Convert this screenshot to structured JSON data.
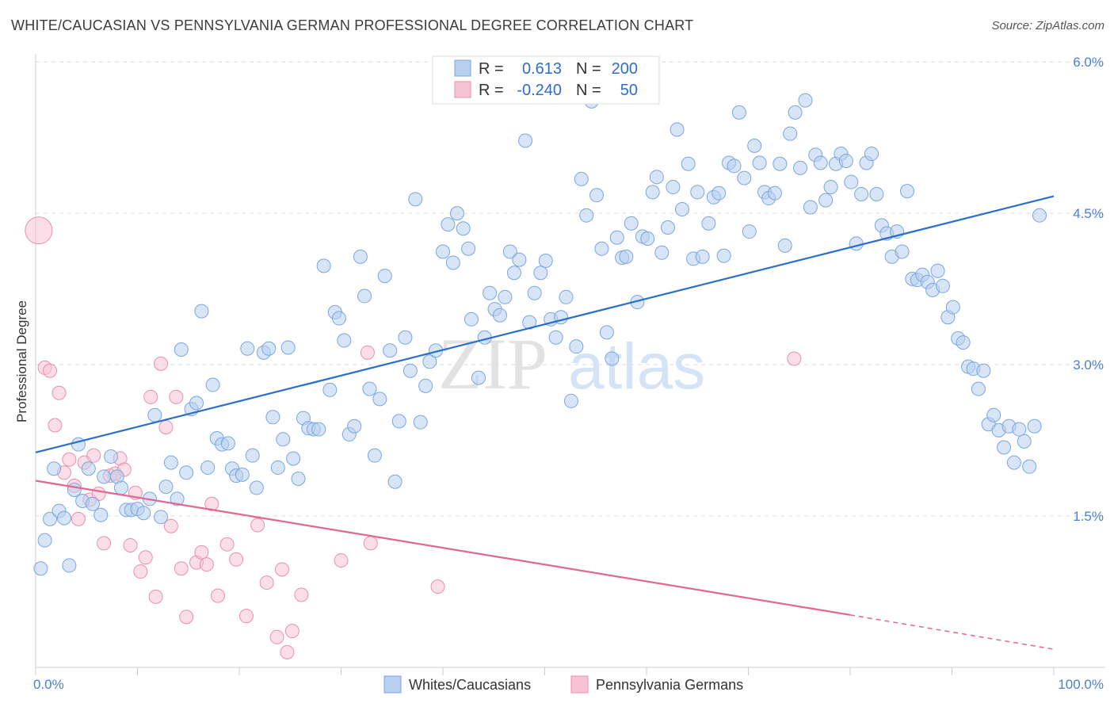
{
  "header": {
    "title": "WHITE/CAUCASIAN VS PENNSYLVANIA GERMAN PROFESSIONAL DEGREE CORRELATION CHART",
    "source": "Source: ZipAtlas.com"
  },
  "watermark": {
    "zip": "ZIP",
    "atlas": "atlas"
  },
  "colors": {
    "blue_fill": "#b8d0f0",
    "blue_stroke": "#7aa6e0",
    "blue_line": "#2a6fcc",
    "pink_fill": "#f7c3d4",
    "pink_stroke": "#ea8fae",
    "pink_line": "#e0688f",
    "tick_text": "#4a7fd4",
    "grid": "#dddddd"
  },
  "stats_legend": {
    "rows": [
      {
        "r_label": "R =",
        "r_value": "0.613",
        "n_label": "N =",
        "n_value": "200",
        "series": "blue"
      },
      {
        "r_label": "R =",
        "r_value": "-0.240",
        "n_label": "N =",
        "n_value": "50",
        "series": "pink"
      }
    ]
  },
  "chart_data": {
    "type": "scatter",
    "title": "WHITE/CAUCASIAN VS PENNSYLVANIA GERMAN PROFESSIONAL DEGREE CORRELATION CHART",
    "xlabel": "",
    "ylabel": "Professional Degree",
    "x_tick_labels": [
      "0.0%",
      "100.0%"
    ],
    "y_tick_labels": [
      "1.5%",
      "3.0%",
      "4.5%",
      "6.0%"
    ],
    "y_ticks": [
      1.5,
      3.0,
      4.5,
      6.0
    ],
    "xlim": [
      0,
      100
    ],
    "ylim": [
      0,
      6.2
    ],
    "grid": true,
    "legend_position": "bottom",
    "series": [
      {
        "name": "Whites/Caucasians",
        "color": "#b8d0f0",
        "trend": {
          "x": [
            0,
            100
          ],
          "y": [
            2.13,
            4.67
          ]
        },
        "points": [
          [
            0.5,
            0.98
          ],
          [
            0.9,
            1.26
          ],
          [
            1.4,
            1.47
          ],
          [
            1.8,
            1.97
          ],
          [
            2.3,
            1.55
          ],
          [
            2.8,
            1.48
          ],
          [
            3.3,
            1.01
          ],
          [
            3.8,
            1.76
          ],
          [
            4.2,
            2.21
          ],
          [
            4.6,
            1.65
          ],
          [
            5.2,
            1.97
          ],
          [
            5.6,
            1.62
          ],
          [
            6.4,
            1.51
          ],
          [
            6.7,
            1.89
          ],
          [
            7.4,
            2.09
          ],
          [
            8.0,
            1.89
          ],
          [
            8.4,
            1.78
          ],
          [
            8.9,
            1.56
          ],
          [
            9.4,
            1.56
          ],
          [
            10.0,
            1.57
          ],
          [
            10.6,
            1.53
          ],
          [
            11.2,
            1.67
          ],
          [
            11.7,
            2.5
          ],
          [
            12.3,
            1.49
          ],
          [
            12.8,
            1.79
          ],
          [
            13.3,
            2.03
          ],
          [
            13.9,
            1.67
          ],
          [
            14.3,
            3.15
          ],
          [
            14.8,
            1.93
          ],
          [
            15.3,
            2.56
          ],
          [
            15.8,
            2.62
          ],
          [
            16.3,
            3.53
          ],
          [
            16.9,
            1.98
          ],
          [
            17.4,
            2.8
          ],
          [
            17.8,
            2.27
          ],
          [
            18.3,
            2.21
          ],
          [
            18.9,
            2.22
          ],
          [
            19.3,
            1.97
          ],
          [
            19.7,
            1.9
          ],
          [
            20.3,
            1.91
          ],
          [
            20.8,
            3.16
          ],
          [
            21.3,
            2.1
          ],
          [
            21.7,
            1.78
          ],
          [
            22.4,
            3.12
          ],
          [
            22.9,
            3.16
          ],
          [
            23.3,
            2.48
          ],
          [
            23.8,
            1.98
          ],
          [
            24.3,
            2.26
          ],
          [
            24.8,
            3.17
          ],
          [
            25.3,
            2.07
          ],
          [
            25.8,
            1.87
          ],
          [
            26.3,
            2.47
          ],
          [
            26.8,
            2.37
          ],
          [
            27.3,
            2.36
          ],
          [
            27.8,
            2.36
          ],
          [
            28.3,
            3.98
          ],
          [
            28.9,
            2.75
          ],
          [
            29.4,
            3.52
          ],
          [
            29.8,
            3.46
          ],
          [
            30.3,
            3.24
          ],
          [
            30.8,
            2.31
          ],
          [
            31.3,
            2.39
          ],
          [
            31.9,
            4.07
          ],
          [
            32.3,
            3.68
          ],
          [
            32.8,
            2.76
          ],
          [
            33.3,
            2.1
          ],
          [
            33.8,
            2.66
          ],
          [
            34.3,
            3.88
          ],
          [
            34.8,
            3.14
          ],
          [
            35.3,
            1.84
          ],
          [
            35.7,
            2.44
          ],
          [
            36.3,
            3.27
          ],
          [
            36.8,
            2.94
          ],
          [
            37.3,
            4.64
          ],
          [
            37.8,
            2.43
          ],
          [
            38.3,
            2.79
          ],
          [
            38.7,
            3.03
          ],
          [
            39.3,
            3.14
          ],
          [
            40.0,
            4.12
          ],
          [
            40.5,
            4.39
          ],
          [
            41.0,
            4.01
          ],
          [
            41.4,
            4.5
          ],
          [
            42.0,
            4.35
          ],
          [
            42.5,
            4.15
          ],
          [
            42.8,
            3.45
          ],
          [
            43.5,
            2.87
          ],
          [
            44.1,
            3.27
          ],
          [
            44.6,
            3.71
          ],
          [
            45.1,
            3.55
          ],
          [
            45.6,
            3.49
          ],
          [
            46.1,
            3.67
          ],
          [
            46.6,
            4.12
          ],
          [
            47.0,
            3.91
          ],
          [
            47.5,
            4.04
          ],
          [
            48.1,
            5.22
          ],
          [
            48.5,
            3.42
          ],
          [
            49.0,
            3.71
          ],
          [
            49.6,
            3.91
          ],
          [
            50.1,
            4.03
          ],
          [
            50.6,
            3.45
          ],
          [
            51.1,
            3.27
          ],
          [
            51.6,
            3.47
          ],
          [
            52.1,
            3.67
          ],
          [
            52.6,
            2.64
          ],
          [
            53.1,
            3.18
          ],
          [
            53.6,
            4.84
          ],
          [
            54.1,
            4.48
          ],
          [
            54.6,
            5.61
          ],
          [
            55.1,
            4.68
          ],
          [
            55.6,
            4.15
          ],
          [
            56.1,
            3.32
          ],
          [
            56.6,
            3.06
          ],
          [
            57.1,
            4.26
          ],
          [
            57.6,
            4.06
          ],
          [
            58.0,
            4.07
          ],
          [
            58.5,
            4.4
          ],
          [
            59.1,
            3.62
          ],
          [
            59.6,
            4.27
          ],
          [
            60.1,
            4.25
          ],
          [
            60.6,
            4.71
          ],
          [
            61.0,
            4.86
          ],
          [
            61.5,
            4.11
          ],
          [
            62.1,
            4.36
          ],
          [
            62.6,
            4.76
          ],
          [
            63.0,
            5.33
          ],
          [
            63.5,
            4.54
          ],
          [
            64.1,
            4.99
          ],
          [
            64.6,
            4.05
          ],
          [
            65.0,
            4.71
          ],
          [
            65.5,
            4.07
          ],
          [
            66.1,
            4.4
          ],
          [
            66.6,
            4.66
          ],
          [
            67.1,
            4.7
          ],
          [
            67.6,
            4.08
          ],
          [
            68.1,
            5.0
          ],
          [
            68.6,
            4.97
          ],
          [
            69.1,
            5.5
          ],
          [
            69.6,
            4.85
          ],
          [
            70.1,
            4.32
          ],
          [
            70.6,
            5.17
          ],
          [
            71.1,
            5.0
          ],
          [
            71.6,
            4.71
          ],
          [
            72.0,
            4.65
          ],
          [
            72.6,
            4.7
          ],
          [
            73.1,
            4.99
          ],
          [
            73.6,
            4.18
          ],
          [
            74.1,
            5.29
          ],
          [
            74.6,
            5.5
          ],
          [
            75.1,
            4.95
          ],
          [
            75.6,
            5.62
          ],
          [
            76.1,
            4.56
          ],
          [
            76.6,
            5.08
          ],
          [
            77.1,
            5.0
          ],
          [
            77.6,
            4.63
          ],
          [
            78.1,
            4.76
          ],
          [
            78.6,
            4.99
          ],
          [
            79.1,
            5.09
          ],
          [
            79.6,
            5.02
          ],
          [
            80.1,
            4.81
          ],
          [
            80.6,
            4.2
          ],
          [
            81.1,
            4.69
          ],
          [
            81.6,
            5.0
          ],
          [
            82.1,
            5.09
          ],
          [
            82.6,
            4.69
          ],
          [
            83.1,
            4.38
          ],
          [
            83.6,
            4.3
          ],
          [
            84.1,
            4.07
          ],
          [
            84.6,
            4.32
          ],
          [
            85.1,
            4.12
          ],
          [
            85.6,
            4.72
          ],
          [
            86.1,
            3.85
          ],
          [
            86.6,
            3.84
          ],
          [
            87.1,
            3.89
          ],
          [
            87.6,
            3.82
          ],
          [
            88.1,
            3.74
          ],
          [
            88.6,
            3.93
          ],
          [
            89.1,
            3.78
          ],
          [
            89.6,
            3.47
          ],
          [
            90.1,
            3.57
          ],
          [
            90.6,
            3.26
          ],
          [
            91.1,
            3.22
          ],
          [
            91.6,
            2.98
          ],
          [
            92.1,
            2.96
          ],
          [
            92.6,
            2.76
          ],
          [
            93.1,
            2.94
          ],
          [
            93.6,
            2.41
          ],
          [
            94.1,
            2.5
          ],
          [
            94.6,
            2.35
          ],
          [
            95.1,
            2.18
          ],
          [
            95.6,
            2.39
          ],
          [
            96.1,
            2.03
          ],
          [
            96.6,
            2.36
          ],
          [
            97.1,
            2.24
          ],
          [
            97.6,
            1.99
          ],
          [
            98.1,
            2.39
          ],
          [
            98.6,
            4.48
          ]
        ]
      },
      {
        "name": "Pennsylvania Germans",
        "color": "#f7c3d4",
        "trend": {
          "x": [
            0,
            80
          ],
          "y": [
            1.85,
            0.52
          ],
          "dashed_to": [
            100,
            0.18
          ]
        },
        "points": [
          [
            0.3,
            4.33
          ],
          [
            0.9,
            2.97
          ],
          [
            1.4,
            2.94
          ],
          [
            1.9,
            2.4
          ],
          [
            2.3,
            2.72
          ],
          [
            2.8,
            1.93
          ],
          [
            3.3,
            2.06
          ],
          [
            3.8,
            1.8
          ],
          [
            4.2,
            1.47
          ],
          [
            4.8,
            2.03
          ],
          [
            5.3,
            1.66
          ],
          [
            5.7,
            2.1
          ],
          [
            6.2,
            1.72
          ],
          [
            6.7,
            1.23
          ],
          [
            7.3,
            1.9
          ],
          [
            7.8,
            1.92
          ],
          [
            8.3,
            2.07
          ],
          [
            8.7,
            1.96
          ],
          [
            9.3,
            1.21
          ],
          [
            9.8,
            1.73
          ],
          [
            10.3,
            0.95
          ],
          [
            10.8,
            1.09
          ],
          [
            11.3,
            2.68
          ],
          [
            11.8,
            0.7
          ],
          [
            12.3,
            3.01
          ],
          [
            12.8,
            2.38
          ],
          [
            13.3,
            1.4
          ],
          [
            13.8,
            2.68
          ],
          [
            14.3,
            0.98
          ],
          [
            14.8,
            0.5
          ],
          [
            15.8,
            1.04
          ],
          [
            16.3,
            1.14
          ],
          [
            16.8,
            1.02
          ],
          [
            17.3,
            1.62
          ],
          [
            17.9,
            0.71
          ],
          [
            18.8,
            1.22
          ],
          [
            19.7,
            1.07
          ],
          [
            20.7,
            0.51
          ],
          [
            21.8,
            1.41
          ],
          [
            22.7,
            0.84
          ],
          [
            23.7,
            0.3
          ],
          [
            24.2,
            0.97
          ],
          [
            24.7,
            0.15
          ],
          [
            25.2,
            0.36
          ],
          [
            26.1,
            0.72
          ],
          [
            30.0,
            1.06
          ],
          [
            32.6,
            3.12
          ],
          [
            32.9,
            1.23
          ],
          [
            39.5,
            0.8
          ],
          [
            74.5,
            3.06
          ]
        ]
      }
    ]
  },
  "bottom_legend": {
    "items": [
      {
        "label": "Whites/Caucasians",
        "series": "blue"
      },
      {
        "label": "Pennsylvania Germans",
        "series": "pink"
      }
    ]
  }
}
